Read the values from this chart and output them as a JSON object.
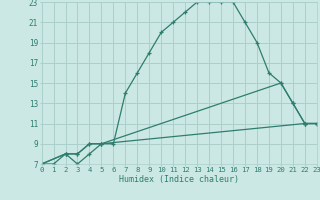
{
  "xlabel": "Humidex (Indice chaleur)",
  "bg_color": "#cce8e4",
  "grid_color": "#aad0cc",
  "line_color": "#2e7d6e",
  "xlim": [
    0,
    23
  ],
  "ylim": [
    7,
    23
  ],
  "xticks": [
    0,
    1,
    2,
    3,
    4,
    5,
    6,
    7,
    8,
    9,
    10,
    11,
    12,
    13,
    14,
    15,
    16,
    17,
    18,
    19,
    20,
    21,
    22,
    23
  ],
  "yticks": [
    7,
    9,
    11,
    13,
    15,
    17,
    19,
    21,
    23
  ],
  "line1_x": [
    0,
    1,
    2,
    3,
    4,
    5,
    6,
    7,
    8,
    9,
    10,
    11,
    12,
    13,
    14,
    15,
    16,
    17,
    18,
    19,
    20,
    21,
    22,
    23
  ],
  "line1_y": [
    7,
    7,
    8,
    7,
    8,
    9,
    9,
    14,
    16,
    18,
    20,
    21,
    22,
    23,
    23,
    23,
    23,
    21,
    19,
    16,
    15,
    13,
    11,
    11
  ],
  "line2_x": [
    0,
    2,
    3,
    4,
    5,
    20,
    21,
    22,
    23
  ],
  "line2_y": [
    7,
    8,
    8,
    9,
    9,
    15,
    13,
    11,
    11
  ],
  "line3_x": [
    0,
    2,
    3,
    4,
    5,
    22,
    23
  ],
  "line3_y": [
    7,
    8,
    8,
    9,
    9,
    11,
    11
  ]
}
